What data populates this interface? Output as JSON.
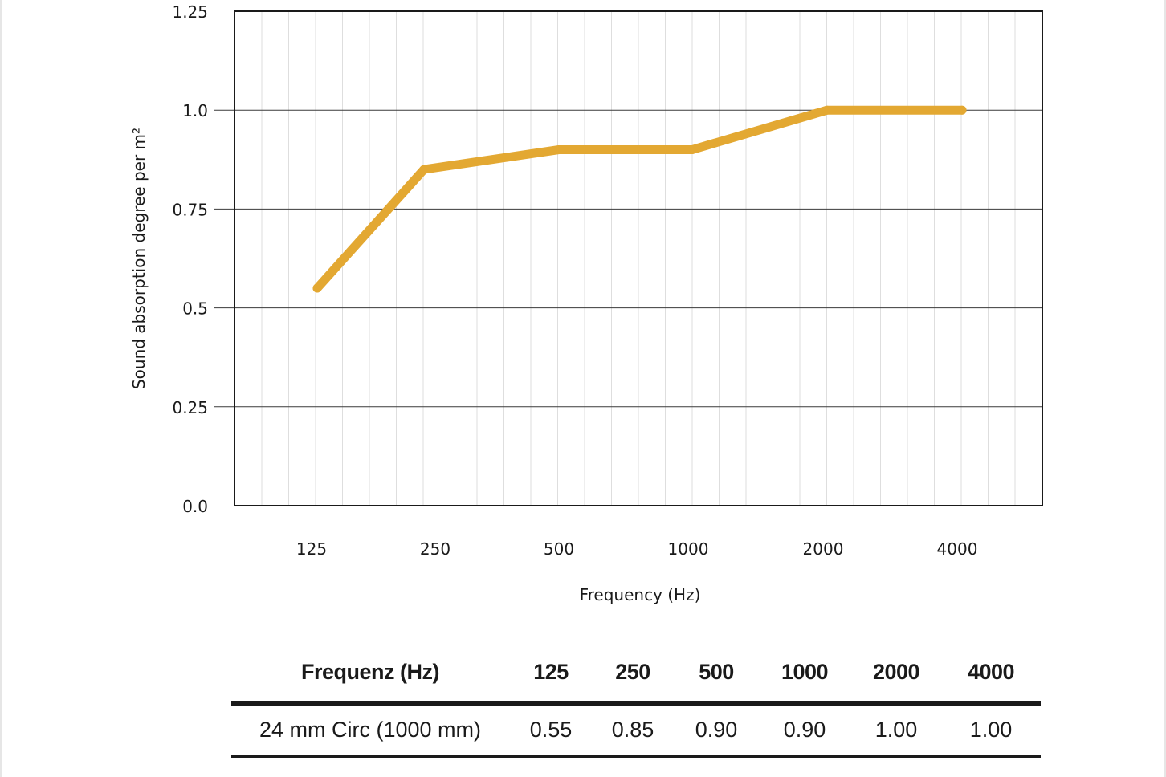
{
  "chart_data": {
    "type": "line",
    "categories": [
      "125",
      "250",
      "500",
      "1000",
      "2000",
      "4000"
    ],
    "series": [
      {
        "values": [
          0.55,
          0.85,
          0.9,
          0.9,
          1.0,
          1.0
        ]
      }
    ],
    "title": "",
    "xlabel": "Frequency (Hz)",
    "ylabel": "Sound absorption degree per m²",
    "ylim": [
      0,
      1.25
    ],
    "yticks": [
      {
        "value": 0,
        "label": "0.0"
      },
      {
        "value": 0.25,
        "label": "0.25"
      },
      {
        "value": 0.5,
        "label": "0.5"
      },
      {
        "value": 0.75,
        "label": "0.75"
      },
      {
        "value": 1.0,
        "label": "1.0"
      },
      {
        "value": 1.25,
        "label": "1.25"
      }
    ],
    "grid": true,
    "line_color": "#E3A832"
  },
  "table": {
    "header_label": "Frequenz (Hz)",
    "columns": [
      "125",
      "250",
      "500",
      "1000",
      "2000",
      "4000"
    ],
    "row_label": "24 mm Circ (1000 mm)",
    "row_values": [
      "0.55",
      "0.85",
      "0.90",
      "0.90",
      "1.00",
      "1.00"
    ]
  }
}
